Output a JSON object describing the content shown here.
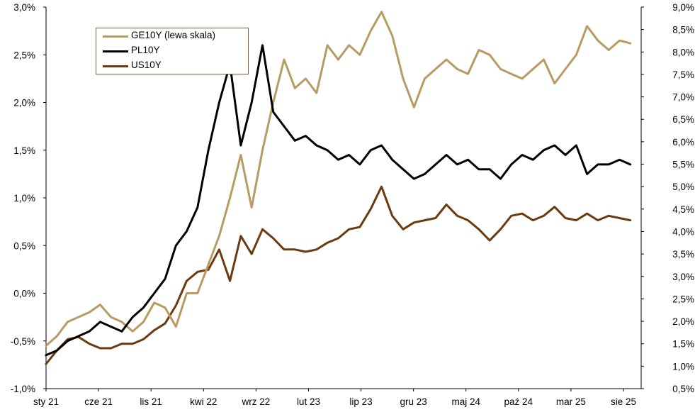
{
  "chart_data": {
    "type": "line",
    "x_tick_labels": [
      "sty 21",
      "cze 21",
      "lis 21",
      "kwi 22",
      "wrz 22",
      "lut 23",
      "lip 23",
      "gru 23",
      "maj 24",
      "paź 24",
      "mar 25",
      "sie 25"
    ],
    "left_axis": {
      "ticks": [
        "-1,0%",
        "-0,5%",
        "0,0%",
        "0,5%",
        "1,0%",
        "1,5%",
        "2,0%",
        "2,5%",
        "3,0%"
      ],
      "ylim": [
        -1.0,
        3.0
      ]
    },
    "right_axis": {
      "ticks": [
        "0,5%",
        "1,0%",
        "1,5%",
        "2,0%",
        "2,5%",
        "3,0%",
        "3,5%",
        "4,0%",
        "4,5%",
        "5,0%",
        "5,5%",
        "6,0%",
        "6,5%",
        "7,0%",
        "7,5%",
        "8,0%",
        "8,5%",
        "9,0%"
      ],
      "ylim": [
        0.5,
        9.0
      ]
    },
    "xlim": [
      0,
      55
    ],
    "legend_position": "top-left",
    "series": [
      {
        "name": "GE10Y (lewa skala)",
        "axis": "left",
        "color": "#b89a63",
        "x": [
          0,
          1,
          2,
          3,
          4,
          5,
          6,
          7,
          8,
          9,
          10,
          11,
          12,
          13,
          14,
          15,
          16,
          17,
          18,
          19,
          20,
          21,
          22,
          23,
          24,
          25,
          26,
          27,
          28,
          29,
          30,
          31,
          32,
          33,
          34,
          35,
          36,
          37,
          38,
          39,
          40,
          41,
          42,
          43,
          44,
          45,
          46,
          47,
          48,
          49,
          50,
          51,
          52,
          53,
          54
        ],
        "y": [
          -0.55,
          -0.45,
          -0.3,
          -0.25,
          -0.2,
          -0.12,
          -0.25,
          -0.3,
          -0.4,
          -0.3,
          -0.1,
          -0.15,
          -0.35,
          0.0,
          0.0,
          0.3,
          0.6,
          1.0,
          1.45,
          0.9,
          1.5,
          2.0,
          2.45,
          2.15,
          2.25,
          2.1,
          2.6,
          2.45,
          2.6,
          2.5,
          2.75,
          2.95,
          2.7,
          2.25,
          1.95,
          2.25,
          2.35,
          2.45,
          2.35,
          2.3,
          2.55,
          2.5,
          2.35,
          2.3,
          2.25,
          2.35,
          2.45,
          2.2,
          2.35,
          2.5,
          2.8,
          2.65,
          2.55,
          2.65,
          2.62
        ]
      },
      {
        "name": "PL10Y",
        "axis": "left",
        "color": "#000000",
        "x": [
          0,
          1,
          2,
          3,
          4,
          5,
          6,
          7,
          8,
          9,
          10,
          11,
          12,
          13,
          14,
          15,
          16,
          17,
          18,
          19,
          20,
          21,
          22,
          23,
          24,
          25,
          26,
          27,
          28,
          29,
          30,
          31,
          32,
          33,
          34,
          35,
          36,
          37,
          38,
          39,
          40,
          41,
          42,
          43,
          44,
          45,
          46,
          47,
          48,
          49,
          50,
          51,
          52,
          53,
          54
        ],
        "y": [
          -0.65,
          -0.6,
          -0.5,
          -0.45,
          -0.4,
          -0.3,
          -0.35,
          -0.4,
          -0.25,
          -0.15,
          0.0,
          0.15,
          0.5,
          0.65,
          0.9,
          1.5,
          2.0,
          2.4,
          1.55,
          2.0,
          2.6,
          1.9,
          1.75,
          1.6,
          1.65,
          1.55,
          1.5,
          1.4,
          1.45,
          1.35,
          1.5,
          1.55,
          1.4,
          1.3,
          1.2,
          1.25,
          1.35,
          1.45,
          1.35,
          1.4,
          1.3,
          1.3,
          1.2,
          1.35,
          1.45,
          1.4,
          1.5,
          1.55,
          1.45,
          1.55,
          1.25,
          1.35,
          1.35,
          1.4,
          1.35
        ]
      },
      {
        "name": "US10Y",
        "axis": "right",
        "color": "#6b3a0e",
        "x": [
          0,
          1,
          2,
          3,
          4,
          5,
          6,
          7,
          8,
          9,
          10,
          11,
          12,
          13,
          14,
          15,
          16,
          17,
          18,
          19,
          20,
          21,
          22,
          23,
          24,
          25,
          26,
          27,
          28,
          29,
          30,
          31,
          32,
          33,
          34,
          35,
          36,
          37,
          38,
          39,
          40,
          41,
          42,
          43,
          44,
          45,
          46,
          47,
          48,
          49,
          50,
          51,
          52,
          53,
          54
        ],
        "y": [
          1.05,
          1.35,
          1.6,
          1.65,
          1.5,
          1.4,
          1.4,
          1.5,
          1.5,
          1.6,
          1.8,
          1.95,
          2.35,
          2.9,
          3.1,
          3.15,
          3.6,
          2.9,
          3.9,
          3.5,
          4.05,
          3.85,
          3.6,
          3.6,
          3.55,
          3.6,
          3.75,
          3.85,
          4.05,
          4.1,
          4.5,
          5.0,
          4.35,
          4.05,
          4.2,
          4.25,
          4.3,
          4.6,
          4.35,
          4.25,
          4.05,
          3.8,
          4.05,
          4.35,
          4.4,
          4.25,
          4.35,
          4.55,
          4.3,
          4.25,
          4.4,
          4.25,
          4.35,
          4.3,
          4.25
        ]
      }
    ]
  }
}
